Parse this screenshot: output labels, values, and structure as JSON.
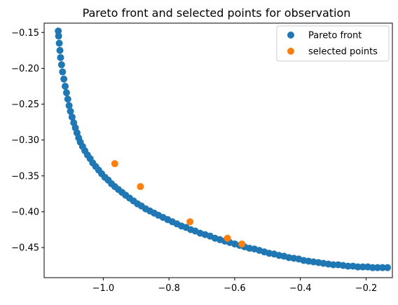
{
  "chart_data": {
    "type": "scatter",
    "title": "Pareto front and selected points for observation",
    "xlabel": "",
    "ylabel": "",
    "xlim": [
      -1.18,
      -0.12
    ],
    "ylim": [
      -0.492,
      -0.137
    ],
    "xticks": [
      -1.0,
      -0.8,
      -0.6,
      -0.4,
      -0.2
    ],
    "xtick_labels": [
      "−1.0",
      "−0.8",
      "−0.6",
      "−0.4",
      "−0.2"
    ],
    "yticks": [
      -0.15,
      -0.2,
      -0.25,
      -0.3,
      -0.35,
      -0.4,
      -0.45
    ],
    "ytick_labels": [
      "−0.15",
      "−0.20",
      "−0.25",
      "−0.30",
      "−0.35",
      "−0.40",
      "−0.45"
    ],
    "grid": false,
    "legend_position": "top-right",
    "series": [
      {
        "name": "Pareto front",
        "color": "#1f77b4",
        "x": [
          -1.137,
          -1.136,
          -1.134,
          -1.132,
          -1.13,
          -1.127,
          -1.124,
          -1.12,
          -1.116,
          -1.112,
          -1.108,
          -1.104,
          -1.1,
          -1.095,
          -1.09,
          -1.085,
          -1.08,
          -1.075,
          -1.07,
          -1.063,
          -1.056,
          -1.048,
          -1.04,
          -1.032,
          -1.023,
          -1.014,
          -1.005,
          -0.995,
          -0.985,
          -0.975,
          -0.965,
          -0.954,
          -0.943,
          -0.932,
          -0.92,
          -0.908,
          -0.896,
          -0.884,
          -0.871,
          -0.858,
          -0.845,
          -0.832,
          -0.818,
          -0.804,
          -0.79,
          -0.776,
          -0.762,
          -0.748,
          -0.734,
          -0.72,
          -0.705,
          -0.69,
          -0.675,
          -0.66,
          -0.645,
          -0.63,
          -0.615,
          -0.6,
          -0.585,
          -0.57,
          -0.555,
          -0.54,
          -0.525,
          -0.51,
          -0.495,
          -0.48,
          -0.465,
          -0.45,
          -0.435,
          -0.42,
          -0.405,
          -0.39,
          -0.375,
          -0.36,
          -0.345,
          -0.33,
          -0.315,
          -0.3,
          -0.285,
          -0.27,
          -0.255,
          -0.24,
          -0.225,
          -0.21,
          -0.195,
          -0.18,
          -0.165,
          -0.15,
          -0.135
        ],
        "y": [
          -0.148,
          -0.155,
          -0.165,
          -0.175,
          -0.185,
          -0.195,
          -0.205,
          -0.215,
          -0.225,
          -0.234,
          -0.243,
          -0.252,
          -0.26,
          -0.268,
          -0.276,
          -0.283,
          -0.29,
          -0.297,
          -0.303,
          -0.309,
          -0.315,
          -0.321,
          -0.326,
          -0.332,
          -0.337,
          -0.342,
          -0.347,
          -0.352,
          -0.356,
          -0.361,
          -0.365,
          -0.369,
          -0.373,
          -0.377,
          -0.381,
          -0.385,
          -0.389,
          -0.392,
          -0.396,
          -0.399,
          -0.402,
          -0.405,
          -0.408,
          -0.411,
          -0.414,
          -0.417,
          -0.42,
          -0.422,
          -0.425,
          -0.427,
          -0.43,
          -0.432,
          -0.434,
          -0.437,
          -0.439,
          -0.441,
          -0.443,
          -0.445,
          -0.447,
          -0.449,
          -0.451,
          -0.452,
          -0.454,
          -0.456,
          -0.458,
          -0.459,
          -0.461,
          -0.462,
          -0.464,
          -0.465,
          -0.466,
          -0.468,
          -0.469,
          -0.47,
          -0.471,
          -0.472,
          -0.473,
          -0.474,
          -0.474,
          -0.475,
          -0.476,
          -0.476,
          -0.477,
          -0.477,
          -0.477,
          -0.478,
          -0.478,
          -0.478,
          -0.478
        ]
      },
      {
        "name": "selected points",
        "color": "#ff7f0e",
        "x": [
          -0.965,
          -0.887,
          -0.736,
          -0.622,
          -0.578
        ],
        "y": [
          -0.333,
          -0.365,
          -0.414,
          -0.437,
          -0.445
        ]
      }
    ]
  }
}
